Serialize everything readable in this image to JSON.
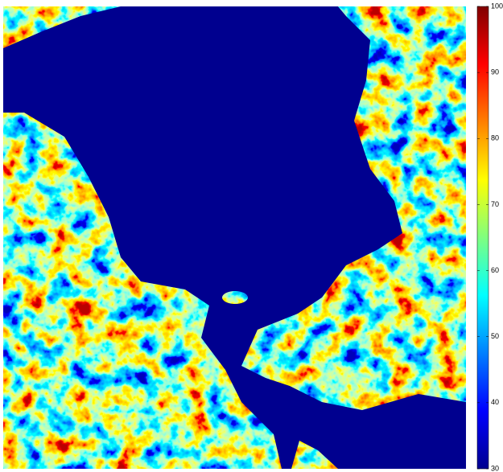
{
  "chart_data": {
    "type": "heatmap",
    "colormap": "jet",
    "colorbar": {
      "clim": [
        30,
        100
      ],
      "ticks": [
        30,
        40,
        50,
        60,
        70,
        80,
        90,
        100
      ]
    }
  }
}
